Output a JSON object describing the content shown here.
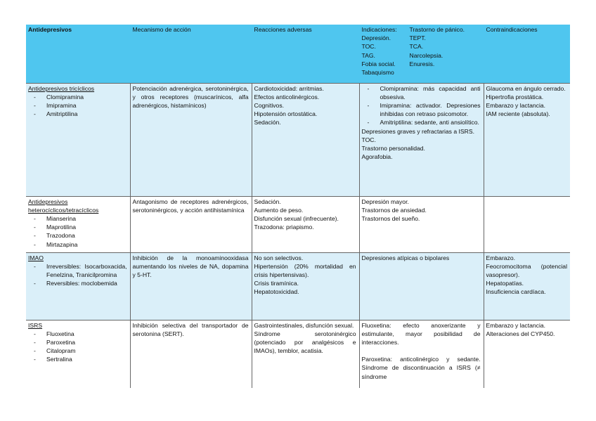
{
  "table": {
    "header": [
      [
        {
          "text": "Antidepresivos"
        }
      ],
      [
        {
          "text": "Mecanismo de acción"
        }
      ],
      [
        {
          "text": "Reacciones adversas"
        }
      ],
      [
        {
          "grid": [
            [
              "Indicaciones:",
              "Trastorno de pánico."
            ],
            [
              "Depresión.",
              "TEPT."
            ],
            [
              "TOC.",
              "TCA."
            ],
            [
              "TAG.",
              "Narcolepsia."
            ],
            [
              "Fobia social.",
              "Enuresis."
            ],
            [
              "Tabaquismo"
            ]
          ]
        }
      ],
      [
        {
          "text": "Contraindicaciones"
        }
      ]
    ],
    "rows": [
      [
        [
          {
            "heading": "Antidepresivos tricíclicos"
          },
          {
            "list": [
              "Clomipramina",
              "Imipramina",
              "Amitriptilina"
            ]
          }
        ],
        [
          {
            "text": "Potenciación adrenérgica, serotoninérgica, y otros receptores (muscarínicos, alfa adrenérgicos, histamínicos)"
          }
        ],
        [
          {
            "text": "Cardiotoxicidad: arritmias."
          },
          {
            "text": "Efectos anticolinérgicos."
          },
          {
            "text": "Cognitivos."
          },
          {
            "text": "Hipotensión ortostática."
          },
          {
            "text": "Sedación."
          }
        ],
        [
          {
            "list": [
              "Clomipramina: más capacidad anti obsesiva.",
              "Imipramina: activador. Depresiones inhibidas con retraso psicomotor.",
              "Amitriptilina: sedante, anti ansiolítico."
            ]
          },
          {
            "text": "Depresiones graves y refractarias a ISRS."
          },
          {
            "text": "TOC."
          },
          {
            "text": "Trastorno personalidad."
          },
          {
            "text": "Agorafobia."
          }
        ],
        [
          {
            "text": "Glaucoma en ángulo cerrado."
          },
          {
            "text": "Hipertrofia prostática."
          },
          {
            "text": "Embarazo y lactancia."
          },
          {
            "text": "IAM reciente (absoluta)."
          }
        ]
      ],
      [
        [
          {
            "heading": "Antidepresivos heterocíclicos/tetracíclicos"
          },
          {
            "list": [
              "Mianserina",
              "Maprotilina",
              "Trazodona",
              "Mirtazapina"
            ]
          }
        ],
        [
          {
            "text": "Antagonismo de receptores adrenérgicos, serotoninérgicos, y acción antihistamínica"
          }
        ],
        [
          {
            "text": "Sedación."
          },
          {
            "text": "Aumento de peso."
          },
          {
            "text": "Disfunción sexual (infrecuente)."
          },
          {
            "text": "Trazodona: priapismo."
          }
        ],
        [
          {
            "text": "Depresión mayor."
          },
          {
            "text": "Trastornos de ansiedad."
          },
          {
            "text": "Trastornos del sueño."
          }
        ],
        []
      ],
      [
        [
          {
            "heading": "IMAO"
          },
          {
            "list": [
              "Irreversibles: Isocarboxacida, Fenelzina, Tranicilpromina",
              "Reversibles: moclobemida"
            ]
          }
        ],
        [
          {
            "text": "Inhibición de la monoaminooxidasa aumentando los niveles de NA, dopamina y 5-HT."
          }
        ],
        [
          {
            "text": "No son selectivos."
          },
          {
            "text": "Hipertensión (20% mortalidad en crisis hipertensivas)."
          },
          {
            "text": "Crisis tiramínica."
          },
          {
            "text": "Hepatotoxicidad."
          }
        ],
        [
          {
            "text": "Depresiones atípicas o bipolares"
          }
        ],
        [
          {
            "text": "Embarazo."
          },
          {
            "text": "Feocromocitoma (potencial vasopresor)."
          },
          {
            "text": "Hepatopatías."
          },
          {
            "text": "Insuficiencia cardíaca."
          }
        ]
      ],
      [
        [
          {
            "heading": "ISRS"
          },
          {
            "list": [
              "Fluoxetina",
              "Paroxetina",
              "Citalopram",
              "Sertralina"
            ]
          }
        ],
        [
          {
            "text": "Inhibición selectiva del transportador de serotonina (SERT)."
          }
        ],
        [
          {
            "text": "Gastrointestinales, disfunción sexual."
          },
          {
            "text": "Síndrome serotoninérgico (potenciado por analgésicos e IMAOs), temblor, acatisia."
          }
        ],
        [
          {
            "text": "Fluoxetina: efecto anoxerizante y estimulante, mayor posibilidad de interacciones."
          },
          {
            "gap": true
          },
          {
            "text": "Paroxetina: anticolinérgico y sedante. Síndrome de discontinuación a ISRS (≠ síndrome"
          }
        ],
        [
          {
            "text": "Embarazo y lactancia."
          },
          {
            "text": "Alteraciones del CYP450."
          }
        ]
      ]
    ]
  }
}
